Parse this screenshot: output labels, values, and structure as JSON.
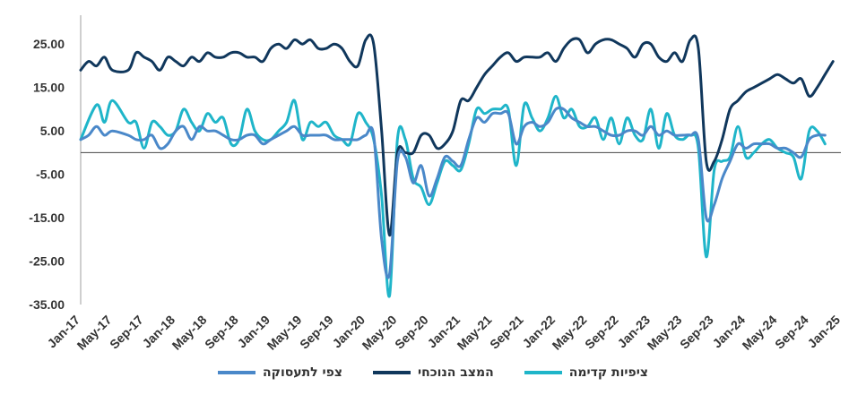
{
  "chart_data": {
    "type": "line",
    "title": "",
    "xlabel": "",
    "ylabel": "",
    "ylim": [
      -35,
      30
    ],
    "yticks": [
      "25.00",
      "15.00",
      "5.00",
      "-5.00",
      "-15.00",
      "-25.00",
      "-35.00"
    ],
    "xticks": [
      "Jan-17",
      "May-17",
      "Sep-17",
      "Jan-18",
      "May-18",
      "Sep-18",
      "Jan-19",
      "May-19",
      "Sep-19",
      "Jan-20",
      "May-20",
      "Sep-20",
      "Jan-21",
      "May-21",
      "Sep-21",
      "Jan-22",
      "May-22",
      "Sep-22",
      "Jan-23",
      "May-23",
      "Sep-23",
      "Jan-24",
      "May-24",
      "Sep-24",
      "Jan-25"
    ],
    "series": [
      {
        "name": "ציפיות קדימה",
        "color": "#1fb5c9",
        "points": [
          [
            "Jan-17",
            3
          ],
          [
            "Mar-17",
            11
          ],
          [
            "Apr-17",
            7
          ],
          [
            "May-17",
            12
          ],
          [
            "Jul-17",
            7
          ],
          [
            "Aug-17",
            7
          ],
          [
            "Sep-17",
            1
          ],
          [
            "Oct-17",
            7
          ],
          [
            "Nov-17",
            6
          ],
          [
            "Dec-17",
            4
          ],
          [
            "Jan-18",
            5
          ],
          [
            "Feb-18",
            10
          ],
          [
            "Mar-18",
            7
          ],
          [
            "Apr-18",
            5
          ],
          [
            "May-18",
            9
          ],
          [
            "Jun-18",
            7
          ],
          [
            "Jul-18",
            8
          ],
          [
            "Aug-18",
            2
          ],
          [
            "Sep-18",
            3
          ],
          [
            "Oct-18",
            10
          ],
          [
            "Nov-18",
            5
          ],
          [
            "Dec-18",
            3
          ],
          [
            "Jan-19",
            3
          ],
          [
            "Feb-19",
            5
          ],
          [
            "Mar-19",
            7
          ],
          [
            "Apr-19",
            12
          ],
          [
            "May-19",
            3
          ],
          [
            "Jun-19",
            7
          ],
          [
            "Jul-19",
            6
          ],
          [
            "Aug-19",
            7
          ],
          [
            "Sep-19",
            4
          ],
          [
            "Oct-19",
            3
          ],
          [
            "Nov-19",
            2
          ],
          [
            "Dec-19",
            9
          ],
          [
            "Jan-20",
            7
          ],
          [
            "Feb-20",
            3
          ],
          [
            "Mar-20",
            -10
          ],
          [
            "Apr-20",
            -33
          ],
          [
            "May-20",
            3
          ],
          [
            "Jun-20",
            3
          ],
          [
            "Jul-20",
            -6
          ],
          [
            "Aug-20",
            -8
          ],
          [
            "Sep-20",
            -12
          ],
          [
            "Oct-20",
            -7
          ],
          [
            "Nov-20",
            -2
          ],
          [
            "Dec-20",
            -3
          ],
          [
            "Jan-21",
            -4
          ],
          [
            "Feb-21",
            2
          ],
          [
            "Mar-21",
            10
          ],
          [
            "Apr-21",
            9
          ],
          [
            "May-21",
            10
          ],
          [
            "Jun-21",
            10
          ],
          [
            "Jul-21",
            10
          ],
          [
            "Aug-21",
            -3
          ],
          [
            "Sep-21",
            11
          ],
          [
            "Oct-21",
            8
          ],
          [
            "Nov-21",
            5
          ],
          [
            "Dec-21",
            8
          ],
          [
            "Jan-22",
            13
          ],
          [
            "Feb-22",
            8
          ],
          [
            "Mar-22",
            10
          ],
          [
            "Apr-22",
            6
          ],
          [
            "May-22",
            6
          ],
          [
            "Jun-22",
            8
          ],
          [
            "Jul-22",
            3
          ],
          [
            "Aug-22",
            8
          ],
          [
            "Sep-22",
            2
          ],
          [
            "Oct-22",
            8
          ],
          [
            "Nov-22",
            4
          ],
          [
            "Dec-22",
            3
          ],
          [
            "Jan-23",
            10
          ],
          [
            "Feb-23",
            1
          ],
          [
            "Mar-23",
            9
          ],
          [
            "Apr-23",
            4
          ],
          [
            "May-23",
            3
          ],
          [
            "Jun-23",
            4
          ],
          [
            "Jul-23",
            1
          ],
          [
            "Aug-23",
            -24
          ],
          [
            "Sep-23",
            -4
          ],
          [
            "Oct-23",
            -2
          ],
          [
            "Nov-23",
            -1
          ],
          [
            "Dec-23",
            6
          ],
          [
            "Jan-24",
            -1
          ],
          [
            "Feb-24",
            0
          ],
          [
            "Mar-24",
            2
          ],
          [
            "Apr-24",
            3
          ],
          [
            "May-24",
            1
          ],
          [
            "Jun-24",
            0
          ],
          [
            "Jul-24",
            -1
          ],
          [
            "Aug-24",
            -6
          ],
          [
            "Sep-24",
            5
          ],
          [
            "Oct-24",
            5
          ],
          [
            "Nov-24",
            2
          ]
        ]
      },
      {
        "name": "המצב הנוכחי",
        "color": "#10375c",
        "points": [
          [
            "Jan-17",
            19
          ],
          [
            "Feb-17",
            21
          ],
          [
            "Mar-17",
            20
          ],
          [
            "Apr-17",
            22
          ],
          [
            "May-17",
            19
          ],
          [
            "Jul-17",
            19
          ],
          [
            "Aug-17",
            23
          ],
          [
            "Sep-17",
            22
          ],
          [
            "Oct-17",
            21
          ],
          [
            "Nov-17",
            19
          ],
          [
            "Dec-17",
            22
          ],
          [
            "Jan-18",
            21
          ],
          [
            "Feb-18",
            20
          ],
          [
            "Mar-18",
            22
          ],
          [
            "Apr-18",
            21
          ],
          [
            "May-18",
            23
          ],
          [
            "Jun-18",
            22
          ],
          [
            "Jul-18",
            22
          ],
          [
            "Aug-18",
            23
          ],
          [
            "Sep-18",
            23
          ],
          [
            "Oct-18",
            22
          ],
          [
            "Nov-18",
            22
          ],
          [
            "Dec-18",
            21
          ],
          [
            "Jan-19",
            24
          ],
          [
            "Feb-19",
            25
          ],
          [
            "Mar-19",
            24
          ],
          [
            "Apr-19",
            26
          ],
          [
            "May-19",
            25
          ],
          [
            "Jun-19",
            26
          ],
          [
            "Jul-19",
            24
          ],
          [
            "Aug-19",
            24
          ],
          [
            "Sep-19",
            25
          ],
          [
            "Oct-19",
            24
          ],
          [
            "Nov-19",
            21
          ],
          [
            "Dec-19",
            20
          ],
          [
            "Jan-20",
            26
          ],
          [
            "Feb-20",
            25
          ],
          [
            "Mar-20",
            5
          ],
          [
            "Apr-20",
            -19
          ],
          [
            "May-20",
            0
          ],
          [
            "Jun-20",
            0
          ],
          [
            "Jul-20",
            0
          ],
          [
            "Aug-20",
            4
          ],
          [
            "Sep-20",
            4
          ],
          [
            "Oct-20",
            1
          ],
          [
            "Nov-20",
            2
          ],
          [
            "Dec-20",
            5
          ],
          [
            "Jan-21",
            12
          ],
          [
            "Feb-21",
            12
          ],
          [
            "Mar-21",
            15
          ],
          [
            "Apr-21",
            18
          ],
          [
            "May-21",
            20
          ],
          [
            "Jun-21",
            22
          ],
          [
            "Jul-21",
            23
          ],
          [
            "Aug-21",
            21
          ],
          [
            "Sep-21",
            22
          ],
          [
            "Oct-21",
            22
          ],
          [
            "Nov-21",
            22
          ],
          [
            "Dec-21",
            23
          ],
          [
            "Jan-22",
            21
          ],
          [
            "Feb-22",
            24
          ],
          [
            "Mar-22",
            26
          ],
          [
            "Apr-22",
            26
          ],
          [
            "May-22",
            23
          ],
          [
            "Jun-22",
            25
          ],
          [
            "Jul-22",
            26
          ],
          [
            "Aug-22",
            26
          ],
          [
            "Sep-22",
            25
          ],
          [
            "Oct-22",
            24
          ],
          [
            "Nov-22",
            22
          ],
          [
            "Dec-22",
            25
          ],
          [
            "Jan-23",
            25
          ],
          [
            "Feb-23",
            22
          ],
          [
            "Mar-23",
            21
          ],
          [
            "Apr-23",
            23
          ],
          [
            "May-23",
            21
          ],
          [
            "Jun-23",
            26
          ],
          [
            "Jul-23",
            24
          ],
          [
            "Aug-23",
            -2
          ],
          [
            "Sep-23",
            -2
          ],
          [
            "Oct-23",
            3
          ],
          [
            "Nov-23",
            10
          ],
          [
            "Dec-23",
            12
          ],
          [
            "Jan-24",
            14
          ],
          [
            "Feb-24",
            15
          ],
          [
            "Mar-24",
            16
          ],
          [
            "Apr-24",
            17
          ],
          [
            "May-24",
            18
          ],
          [
            "Jun-24",
            17
          ],
          [
            "Jul-24",
            16
          ],
          [
            "Aug-24",
            17
          ],
          [
            "Sep-24",
            13
          ],
          [
            "Oct-24",
            15
          ],
          [
            "Nov-24",
            18
          ],
          [
            "Dec-24",
            21
          ]
        ]
      },
      {
        "name": "צפי לתעסוקה",
        "color": "#4a88c9",
        "points": [
          [
            "Jan-17",
            3
          ],
          [
            "Feb-17",
            4
          ],
          [
            "Mar-17",
            6
          ],
          [
            "Apr-17",
            4
          ],
          [
            "May-17",
            5
          ],
          [
            "Jul-17",
            4
          ],
          [
            "Aug-17",
            3
          ],
          [
            "Sep-17",
            3
          ],
          [
            "Oct-17",
            4
          ],
          [
            "Nov-17",
            1
          ],
          [
            "Dec-17",
            2
          ],
          [
            "Jan-18",
            5
          ],
          [
            "Feb-18",
            6
          ],
          [
            "Mar-18",
            3
          ],
          [
            "Apr-18",
            6
          ],
          [
            "May-18",
            5
          ],
          [
            "Jun-18",
            5
          ],
          [
            "Jul-18",
            4
          ],
          [
            "Aug-18",
            3
          ],
          [
            "Sep-18",
            3
          ],
          [
            "Oct-18",
            4
          ],
          [
            "Nov-18",
            4
          ],
          [
            "Dec-18",
            2
          ],
          [
            "Jan-19",
            3
          ],
          [
            "Feb-19",
            4
          ],
          [
            "Mar-19",
            5
          ],
          [
            "Apr-19",
            6
          ],
          [
            "May-19",
            4
          ],
          [
            "Jun-19",
            4
          ],
          [
            "Jul-19",
            4
          ],
          [
            "Aug-19",
            4
          ],
          [
            "Sep-19",
            3
          ],
          [
            "Oct-19",
            3
          ],
          [
            "Nov-19",
            3
          ],
          [
            "Dec-19",
            3
          ],
          [
            "Jan-20",
            4
          ],
          [
            "Feb-20",
            4
          ],
          [
            "Mar-20",
            -20
          ],
          [
            "Apr-20",
            -28
          ],
          [
            "May-20",
            -2
          ],
          [
            "Jun-20",
            -1
          ],
          [
            "Jul-20",
            -7
          ],
          [
            "Aug-20",
            -3
          ],
          [
            "Sep-20",
            -10
          ],
          [
            "Oct-20",
            -6
          ],
          [
            "Nov-20",
            -1
          ],
          [
            "Dec-20",
            -2
          ],
          [
            "Jan-21",
            -3
          ],
          [
            "Feb-21",
            3
          ],
          [
            "Mar-21",
            8
          ],
          [
            "Apr-21",
            7
          ],
          [
            "May-21",
            9
          ],
          [
            "Jun-21",
            9
          ],
          [
            "Jul-21",
            9
          ],
          [
            "Aug-21",
            2
          ],
          [
            "Sep-21",
            6
          ],
          [
            "Oct-21",
            7
          ],
          [
            "Nov-21",
            6
          ],
          [
            "Dec-21",
            7
          ],
          [
            "Jan-22",
            10
          ],
          [
            "Feb-22",
            10
          ],
          [
            "Mar-22",
            8
          ],
          [
            "Apr-22",
            7
          ],
          [
            "May-22",
            6
          ],
          [
            "Jun-22",
            6
          ],
          [
            "Jul-22",
            5
          ],
          [
            "Aug-22",
            4
          ],
          [
            "Sep-22",
            4
          ],
          [
            "Oct-22",
            5
          ],
          [
            "Nov-22",
            5
          ],
          [
            "Dec-22",
            4
          ],
          [
            "Jan-23",
            6
          ],
          [
            "Feb-23",
            4
          ],
          [
            "Mar-23",
            5
          ],
          [
            "Apr-23",
            4
          ],
          [
            "May-23",
            4
          ],
          [
            "Jun-23",
            4
          ],
          [
            "Jul-23",
            3
          ],
          [
            "Aug-23",
            -15
          ],
          [
            "Sep-23",
            -12
          ],
          [
            "Oct-23",
            -6
          ],
          [
            "Nov-23",
            -2
          ],
          [
            "Dec-23",
            2
          ],
          [
            "Jan-24",
            1
          ],
          [
            "Feb-24",
            2
          ],
          [
            "Mar-24",
            2
          ],
          [
            "Apr-24",
            2
          ],
          [
            "May-24",
            1
          ],
          [
            "Jun-24",
            1
          ],
          [
            "Jul-24",
            0
          ],
          [
            "Aug-24",
            -1
          ],
          [
            "Sep-24",
            3
          ],
          [
            "Oct-24",
            4
          ],
          [
            "Nov-24",
            4
          ]
        ]
      }
    ]
  }
}
